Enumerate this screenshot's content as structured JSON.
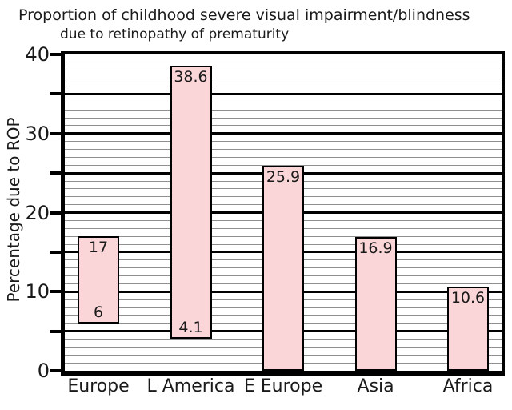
{
  "chart_data": {
    "type": "bar",
    "subtype": "floating-range-bars",
    "title": "Proportion of childhood severe visual impairment/blindness",
    "subtitle": "due to retinopathy of prematurity",
    "xlabel": "",
    "ylabel": "Percentage due to ROP",
    "ylim": [
      0,
      40
    ],
    "yticks_labeled": [
      0,
      10,
      20,
      30,
      40
    ],
    "ytick_mark_step": 5,
    "categories": [
      "Europe",
      "L America",
      "E Europe",
      "Asia",
      "Africa"
    ],
    "series": [
      {
        "name": "Percentage due to ROP",
        "bars": [
          {
            "category": "Europe",
            "low": 6,
            "high": 17,
            "low_label": "6",
            "high_label": "17"
          },
          {
            "category": "L America",
            "low": 4.1,
            "high": 38.6,
            "low_label": "4.1",
            "high_label": "38.6"
          },
          {
            "category": "E Europe",
            "low": 0,
            "high": 25.9,
            "low_label": "",
            "high_label": "25.9"
          },
          {
            "category": "Asia",
            "low": 0,
            "high": 16.9,
            "low_label": "",
            "high_label": "16.9"
          },
          {
            "category": "Africa",
            "low": 0,
            "high": 10.6,
            "low_label": "",
            "high_label": "10.6"
          }
        ]
      }
    ],
    "grid": {
      "major_step": 5,
      "minor_step": 1,
      "major_color": "#000000",
      "minor_color": "#8f8f8f"
    },
    "colors": {
      "background": "#ffffff",
      "bar_fill": "#fbd6d8",
      "bar_border": "#000000",
      "axis": "#000000",
      "text": "#1a1a1a"
    },
    "legend": "none"
  }
}
